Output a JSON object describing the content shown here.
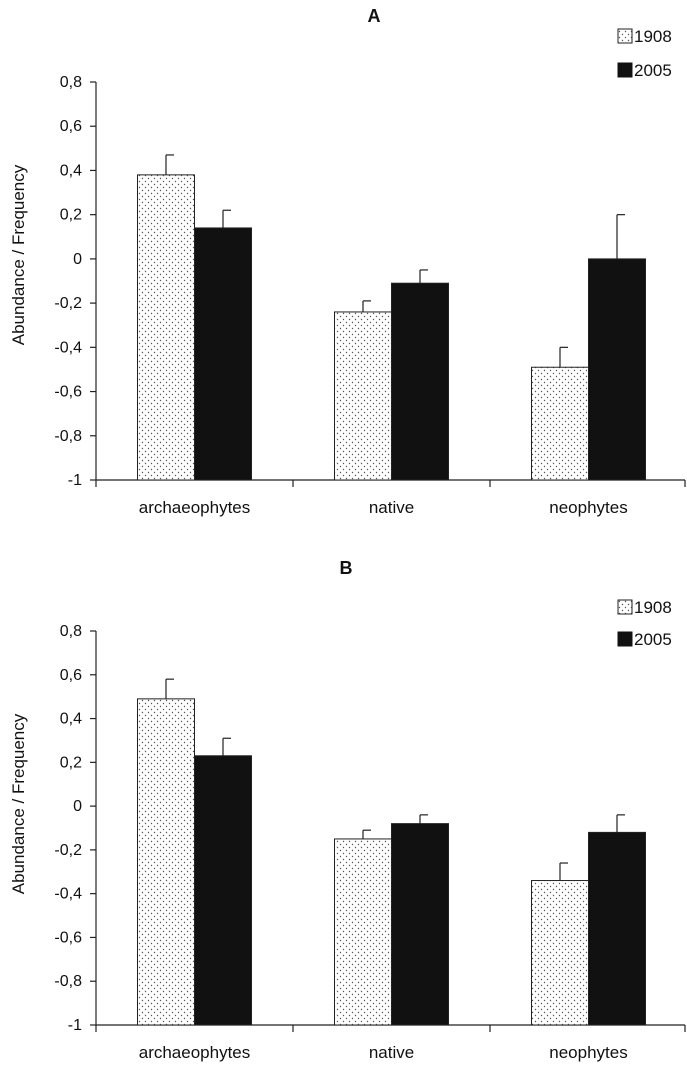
{
  "chart_data": [
    {
      "type": "bar",
      "title": "A",
      "ylabel": "Abundance / Frequency",
      "xlabel": "",
      "categories": [
        "archaeophytes",
        "native",
        "neophytes"
      ],
      "ylim": [
        -1,
        0.8
      ],
      "yticks": [
        "0,8",
        "0,6",
        "0,4",
        "0,2",
        "0",
        "-0,2",
        "-0,4",
        "-0,6",
        "-0,8",
        "-1"
      ],
      "legend_position": "top-right",
      "series": [
        {
          "name": "1908",
          "pattern": "dotted",
          "values": [
            0.38,
            -0.24,
            -0.49
          ],
          "errors": [
            0.09,
            0.05,
            0.09
          ]
        },
        {
          "name": "2005",
          "pattern": "solid",
          "values": [
            0.14,
            -0.11,
            0.0
          ],
          "errors": [
            0.08,
            0.06,
            0.2
          ]
        }
      ]
    },
    {
      "type": "bar",
      "title": "B",
      "ylabel": "Abundance / Frequency",
      "xlabel": "",
      "categories": [
        "archaeophytes",
        "native",
        "neophytes"
      ],
      "ylim": [
        -1,
        0.8
      ],
      "yticks": [
        "0,8",
        "0,6",
        "0,4",
        "0,2",
        "0",
        "-0,2",
        "-0,4",
        "-0,6",
        "-0,8",
        "-1"
      ],
      "legend_position": "top-right",
      "series": [
        {
          "name": "1908",
          "pattern": "dotted",
          "values": [
            0.49,
            -0.15,
            -0.34
          ],
          "errors": [
            0.09,
            0.04,
            0.08
          ]
        },
        {
          "name": "2005",
          "pattern": "solid",
          "values": [
            0.23,
            -0.08,
            -0.12
          ],
          "errors": [
            0.08,
            0.04,
            0.08
          ]
        }
      ]
    }
  ],
  "colors": {
    "bar_solid": "#111111",
    "bar_dotted_fill": "#ffffff",
    "dot": "#555555",
    "axis": "#222222"
  }
}
